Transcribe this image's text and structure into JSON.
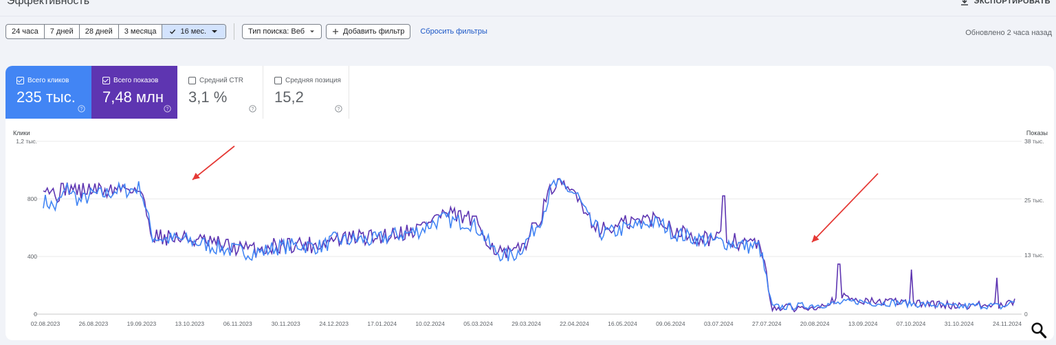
{
  "header": {
    "title": "Эффективность",
    "export_label": "ЭКСПОРТИРОВАТЬ",
    "updated": "Обновлено 2 часа назад"
  },
  "toolbar": {
    "ranges": [
      "24 часа",
      "7 дней",
      "28 дней",
      "3 месяца"
    ],
    "active_range": "16 мес.",
    "search_type": "Тип поиска: Веб",
    "add_filter": "Добавить фильтр",
    "reset_filters": "Сбросить фильтры"
  },
  "metrics": [
    {
      "label": "Всего кликов",
      "value": "235 тыс.",
      "checked": true,
      "color": "#4285f4"
    },
    {
      "label": "Всего показов",
      "value": "7,48 млн",
      "checked": true,
      "color": "#5e35b1"
    },
    {
      "label": "Средний CTR",
      "value": "3,1 %",
      "checked": false
    },
    {
      "label": "Средняя позиция",
      "value": "15,2",
      "checked": false
    }
  ],
  "chart_data": {
    "type": "line",
    "left_axis_label": "Клики",
    "right_axis_label": "Показы",
    "left_ticks": [
      "1,2 тыс.",
      "800",
      "400",
      "0"
    ],
    "left_tick_values": [
      1200,
      800,
      400,
      0
    ],
    "right_ticks": [
      "38 тыс.",
      "25 тыс.",
      "13 тыс.",
      "0"
    ],
    "right_tick_values": [
      38000,
      25000,
      13000,
      0
    ],
    "x_labels": [
      "02.08.2023",
      "26.08.2023",
      "19.09.2023",
      "13.10.2023",
      "06.11.2023",
      "30.11.2023",
      "24.12.2023",
      "17.01.2024",
      "10.02.2024",
      "05.03.2024",
      "29.03.2024",
      "22.04.2024",
      "16.05.2024",
      "09.06.2024",
      "03.07.2024",
      "27.07.2024",
      "20.08.2024",
      "13.09.2024",
      "07.10.2024",
      "31.10.2024",
      "24.11.2024"
    ],
    "ylim_clicks": [
      0,
      1200
    ],
    "ylim_impressions": [
      0,
      38000
    ],
    "grid": true,
    "series": [
      {
        "name": "Всего кликов",
        "color": "#4285f4",
        "anchors": [
          [
            0,
            790
          ],
          [
            1,
            740
          ],
          [
            2,
            880
          ],
          [
            3,
            780
          ],
          [
            4,
            830
          ],
          [
            5,
            830
          ],
          [
            6,
            860
          ],
          [
            7,
            860
          ],
          [
            8,
            880
          ],
          [
            9,
            540
          ],
          [
            10,
            520
          ],
          [
            11,
            520
          ],
          [
            12,
            510
          ],
          [
            13,
            490
          ],
          [
            14,
            470
          ],
          [
            15,
            450
          ],
          [
            16,
            440
          ],
          [
            17,
            430
          ],
          [
            18,
            430
          ],
          [
            19,
            460
          ],
          [
            20,
            470
          ],
          [
            21,
            480
          ],
          [
            22,
            470
          ],
          [
            23,
            470
          ],
          [
            24,
            520
          ],
          [
            25,
            510
          ],
          [
            26,
            520
          ],
          [
            27,
            510
          ],
          [
            28,
            530
          ],
          [
            29,
            550
          ],
          [
            30,
            560
          ],
          [
            31,
            580
          ],
          [
            32,
            630
          ],
          [
            33,
            660
          ],
          [
            34,
            640
          ],
          [
            35,
            640
          ],
          [
            36,
            580
          ],
          [
            37,
            450
          ],
          [
            38,
            400
          ],
          [
            39,
            420
          ],
          [
            40,
            530
          ],
          [
            41,
            670
          ],
          [
            42,
            900
          ],
          [
            43,
            880
          ],
          [
            44,
            820
          ],
          [
            45,
            640
          ],
          [
            46,
            560
          ],
          [
            47,
            570
          ],
          [
            48,
            600
          ],
          [
            49,
            610
          ],
          [
            50,
            640
          ],
          [
            51,
            620
          ],
          [
            52,
            560
          ],
          [
            53,
            540
          ],
          [
            54,
            520
          ],
          [
            55,
            510
          ],
          [
            56,
            500
          ],
          [
            57,
            490
          ],
          [
            58,
            470
          ],
          [
            59,
            470
          ],
          [
            60,
            50
          ],
          [
            61,
            50
          ],
          [
            62,
            55
          ],
          [
            63,
            60
          ],
          [
            64,
            65
          ],
          [
            65,
            70
          ],
          [
            66,
            80
          ],
          [
            67,
            90
          ],
          [
            68,
            80
          ],
          [
            69,
            75
          ],
          [
            70,
            80
          ],
          [
            71,
            75
          ],
          [
            72,
            70
          ],
          [
            73,
            65
          ],
          [
            74,
            60
          ],
          [
            75,
            50
          ],
          [
            76,
            55
          ],
          [
            77,
            60
          ],
          [
            78,
            60
          ],
          [
            79,
            50
          ],
          [
            80,
            90
          ]
        ]
      },
      {
        "name": "Всего показов",
        "color": "#5e35b1",
        "anchors": [
          [
            0,
            29000
          ],
          [
            1,
            26000
          ],
          [
            2,
            28000
          ],
          [
            3,
            27000
          ],
          [
            4,
            27500
          ],
          [
            5,
            27000
          ],
          [
            6,
            27500
          ],
          [
            7,
            28000
          ],
          [
            8,
            27000
          ],
          [
            9,
            17500
          ],
          [
            10,
            17000
          ],
          [
            11,
            16800
          ],
          [
            12,
            16500
          ],
          [
            13,
            16000
          ],
          [
            14,
            15500
          ],
          [
            15,
            15000
          ],
          [
            16,
            14500
          ],
          [
            17,
            14200
          ],
          [
            18,
            14300
          ],
          [
            19,
            15000
          ],
          [
            20,
            15300
          ],
          [
            21,
            15500
          ],
          [
            22,
            15200
          ],
          [
            23,
            15500
          ],
          [
            24,
            16500
          ],
          [
            25,
            16500
          ],
          [
            26,
            17000
          ],
          [
            27,
            16800
          ],
          [
            28,
            17300
          ],
          [
            29,
            17800
          ],
          [
            30,
            18200
          ],
          [
            31,
            19000
          ],
          [
            32,
            21000
          ],
          [
            33,
            22000
          ],
          [
            34,
            21500
          ],
          [
            35,
            21000
          ],
          [
            36,
            19000
          ],
          [
            37,
            14800
          ],
          [
            38,
            13000
          ],
          [
            39,
            13500
          ],
          [
            40,
            17000
          ],
          [
            41,
            22000
          ],
          [
            42,
            28500
          ],
          [
            43,
            27500
          ],
          [
            44,
            26500
          ],
          [
            45,
            21000
          ],
          [
            46,
            18500
          ],
          [
            47,
            19000
          ],
          [
            48,
            20000
          ],
          [
            49,
            20500
          ],
          [
            50,
            21000
          ],
          [
            51,
            20500
          ],
          [
            52,
            18500
          ],
          [
            53,
            17500
          ],
          [
            54,
            17000
          ],
          [
            55,
            16700
          ],
          [
            56,
            16500
          ],
          [
            57,
            16000
          ],
          [
            58,
            15500
          ],
          [
            59,
            15500
          ],
          [
            60,
            1500
          ],
          [
            61,
            1400
          ],
          [
            62,
            1300
          ],
          [
            63,
            1500
          ],
          [
            64,
            2000
          ],
          [
            65,
            3000
          ],
          [
            66,
            3800
          ],
          [
            67,
            3200
          ],
          [
            68,
            2800
          ],
          [
            69,
            2700
          ],
          [
            70,
            2800
          ],
          [
            71,
            2600
          ],
          [
            72,
            2400
          ],
          [
            73,
            2300
          ],
          [
            74,
            2100
          ],
          [
            75,
            1900
          ],
          [
            76,
            1900
          ],
          [
            77,
            2000
          ],
          [
            78,
            1900
          ],
          [
            79,
            1700
          ],
          [
            80,
            2800
          ]
        ],
        "spikes": [
          [
            65.5,
            11000
          ],
          [
            71.5,
            9800
          ],
          [
            78.5,
            8000
          ],
          [
            56,
            26000
          ]
        ]
      }
    ],
    "annotations": [
      {
        "type": "arrow",
        "color": "#e53935",
        "target": "13.10.2023",
        "note": ""
      },
      {
        "type": "arrow",
        "color": "#e53935",
        "target": "20.08.2024",
        "note": ""
      }
    ]
  }
}
